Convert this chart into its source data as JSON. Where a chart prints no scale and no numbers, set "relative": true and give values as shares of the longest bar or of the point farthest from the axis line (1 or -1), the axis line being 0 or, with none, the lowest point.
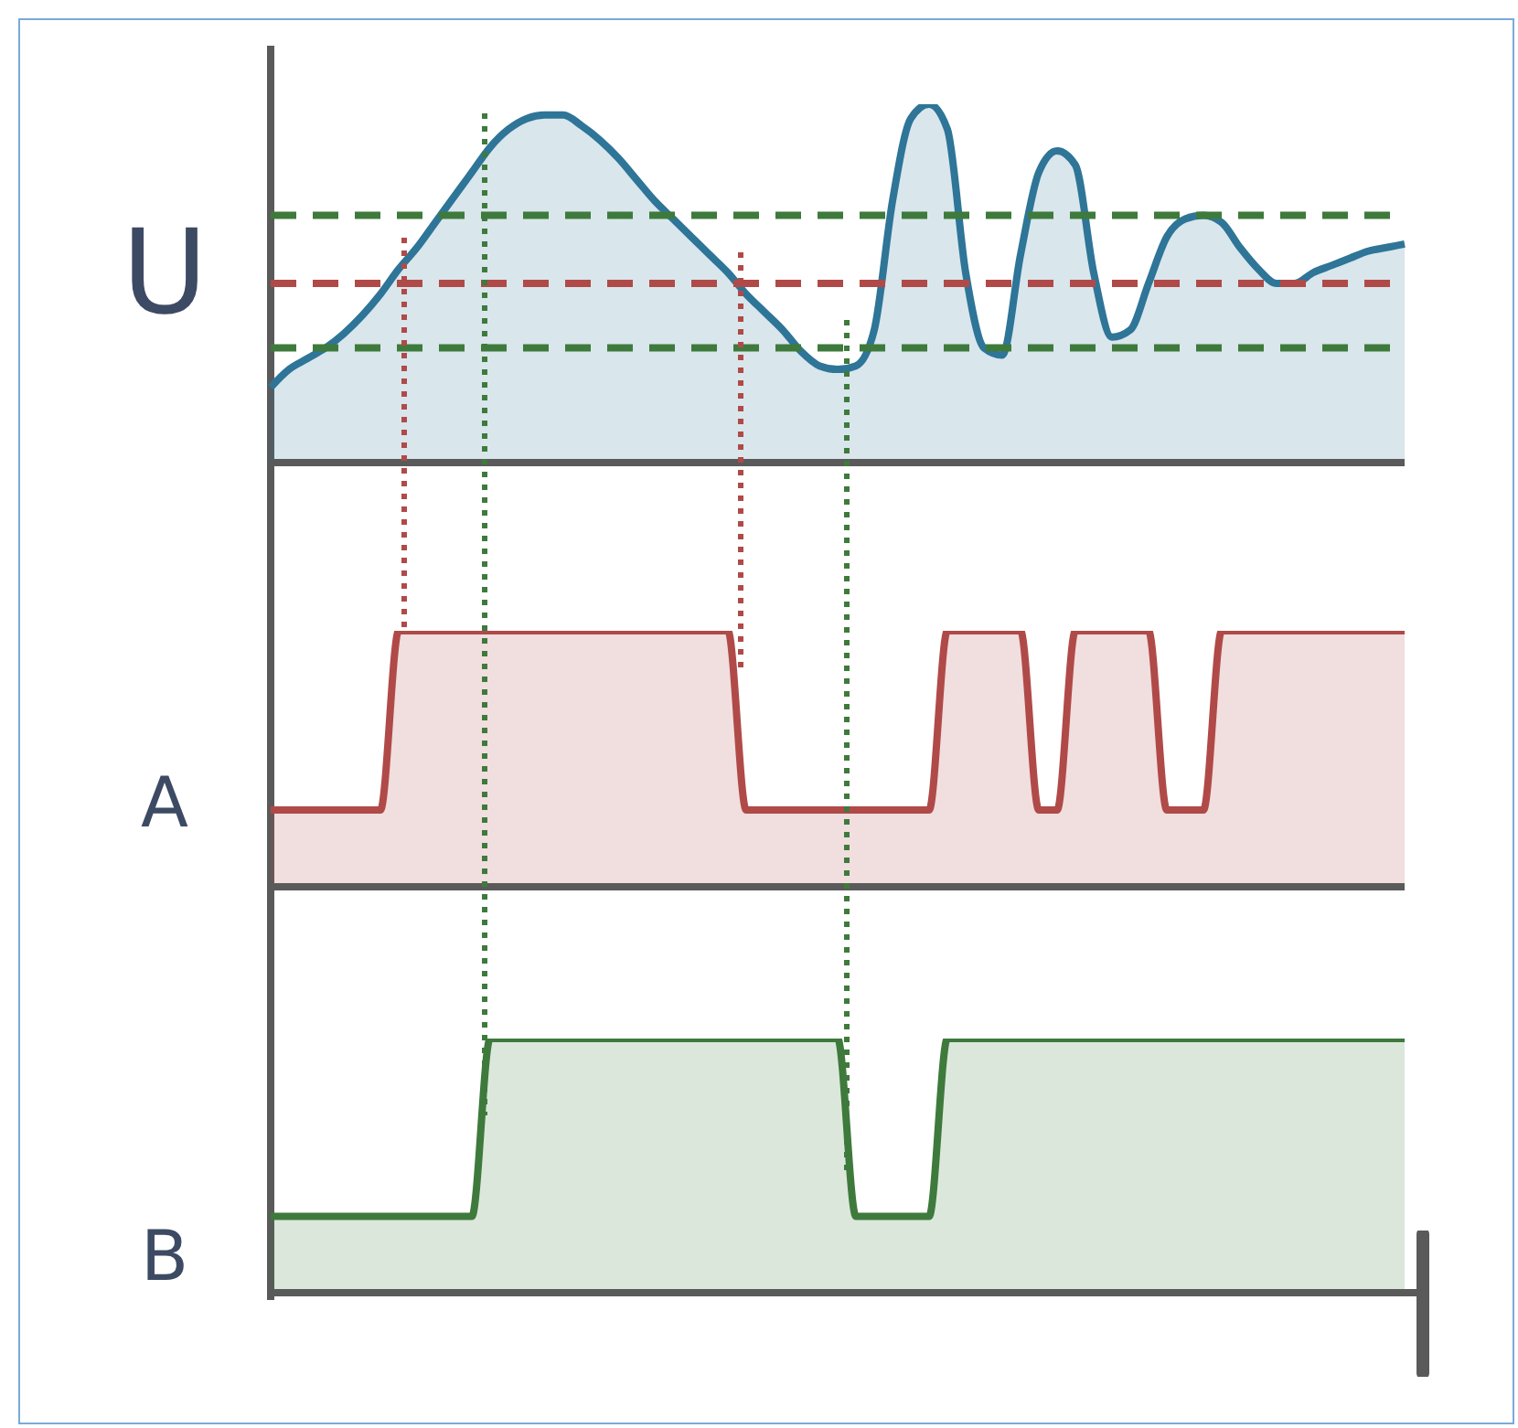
{
  "chart_data": [
    {
      "type": "area",
      "ylabel": "U",
      "relative": true,
      "tick_labels": false,
      "categories": [
        null,
        null,
        null,
        null,
        null,
        null,
        null,
        null,
        null,
        null,
        null,
        null,
        null,
        null,
        null,
        null,
        null,
        null,
        null,
        null,
        null,
        null,
        null,
        null,
        null,
        null,
        null,
        null,
        null,
        null,
        null,
        null,
        null,
        null,
        null,
        null,
        null,
        null,
        null,
        null,
        null,
        null,
        null,
        null,
        null,
        null,
        null,
        null,
        null,
        null,
        null,
        null,
        null,
        null,
        null,
        null,
        null,
        null,
        null,
        null,
        null,
        null,
        null
      ],
      "series": [
        {
          "color": "#2e7598",
          "values": [
            0.21,
            0.26,
            0.29,
            0.32,
            0.36,
            0.41,
            0.47,
            0.54,
            0.6,
            0.67,
            0.74,
            0.81,
            0.88,
            0.93,
            0.96,
            0.97,
            0.97,
            0.94,
            0.9,
            0.85,
            0.79,
            0.73,
            0.68,
            0.63,
            0.58,
            0.53,
            0.47,
            0.42,
            0.37,
            0.31,
            0.27,
            0.26,
            0.27,
            0.37,
            0.73,
            0.96,
            1,
            0.93,
            0.53,
            0.32,
            0.3,
            0.58,
            0.81,
            0.87,
            0.83,
            0.53,
            0.35,
            0.37,
            0.5,
            0.63,
            0.68,
            0.69,
            0.67,
            0.6,
            0.54,
            0.5,
            0.5,
            0.53,
            0.55,
            0.57,
            0.59,
            0.6,
            0.61
          ]
        }
      ],
      "ref_lines": [
        {
          "axis": "y",
          "value": 0.69,
          "color": "#3e7a3c",
          "line_style": "dashed"
        },
        {
          "axis": "y",
          "value": 0.5,
          "color": "#b04a48",
          "line_style": "dashed"
        },
        {
          "axis": "y",
          "value": 0.32,
          "color": "#3e7a3c",
          "line_style": "dashed"
        }
      ]
    },
    {
      "type": "area",
      "ylabel": "A",
      "relative": true,
      "tick_labels": false,
      "categories": [
        null,
        null,
        null,
        null,
        null,
        null,
        null,
        null,
        null,
        null,
        null,
        null,
        null,
        null,
        null,
        null,
        null,
        null,
        null,
        null,
        null,
        null,
        null,
        null,
        null,
        null,
        null,
        null,
        null,
        null,
        null,
        null,
        null,
        null,
        null,
        null,
        null,
        null,
        null,
        null,
        null,
        null,
        null,
        null,
        null,
        null,
        null,
        null,
        null,
        null,
        null,
        null,
        null,
        null,
        null,
        null,
        null,
        null,
        null,
        null,
        null,
        null,
        null
      ],
      "series": [
        {
          "color": "#b04a48",
          "values": [
            0.3,
            0.3,
            0.3,
            0.3,
            0.3,
            0.3,
            0.3,
            1,
            1,
            1,
            1,
            1,
            1,
            1,
            1,
            1,
            1,
            1,
            1,
            1,
            1,
            1,
            1,
            1,
            1,
            1,
            0.3,
            0.3,
            0.3,
            0.3,
            0.3,
            0.3,
            0.3,
            0.3,
            0.3,
            0.3,
            0.3,
            1,
            1,
            1,
            1,
            1,
            0.3,
            0.3,
            1,
            1,
            1,
            1,
            1,
            0.3,
            0.3,
            0.3,
            1,
            1,
            1,
            1,
            1,
            1,
            1,
            1,
            1,
            1,
            1
          ]
        }
      ]
    },
    {
      "type": "area",
      "ylabel": "B",
      "relative": true,
      "tick_labels": false,
      "categories": [
        null,
        null,
        null,
        null,
        null,
        null,
        null,
        null,
        null,
        null,
        null,
        null,
        null,
        null,
        null,
        null,
        null,
        null,
        null,
        null,
        null,
        null,
        null,
        null,
        null,
        null,
        null,
        null,
        null,
        null,
        null,
        null,
        null,
        null,
        null,
        null,
        null,
        null,
        null,
        null,
        null,
        null,
        null,
        null,
        null,
        null,
        null,
        null,
        null,
        null,
        null,
        null,
        null,
        null,
        null,
        null,
        null,
        null,
        null,
        null,
        null,
        null,
        null
      ],
      "series": [
        {
          "color": "#3e7a3c",
          "values": [
            0.3,
            0.3,
            0.3,
            0.3,
            0.3,
            0.3,
            0.3,
            0.3,
            0.3,
            0.3,
            0.3,
            0.3,
            1,
            1,
            1,
            1,
            1,
            1,
            1,
            1,
            1,
            1,
            1,
            1,
            1,
            1,
            1,
            1,
            1,
            1,
            1,
            1,
            0.3,
            0.3,
            0.3,
            0.3,
            0.3,
            1,
            1,
            1,
            1,
            1,
            1,
            1,
            1,
            1,
            1,
            1,
            1,
            1,
            1,
            1,
            1,
            1,
            1,
            1,
            1,
            1,
            1,
            1,
            1,
            1,
            1
          ]
        }
      ]
    }
  ]
}
